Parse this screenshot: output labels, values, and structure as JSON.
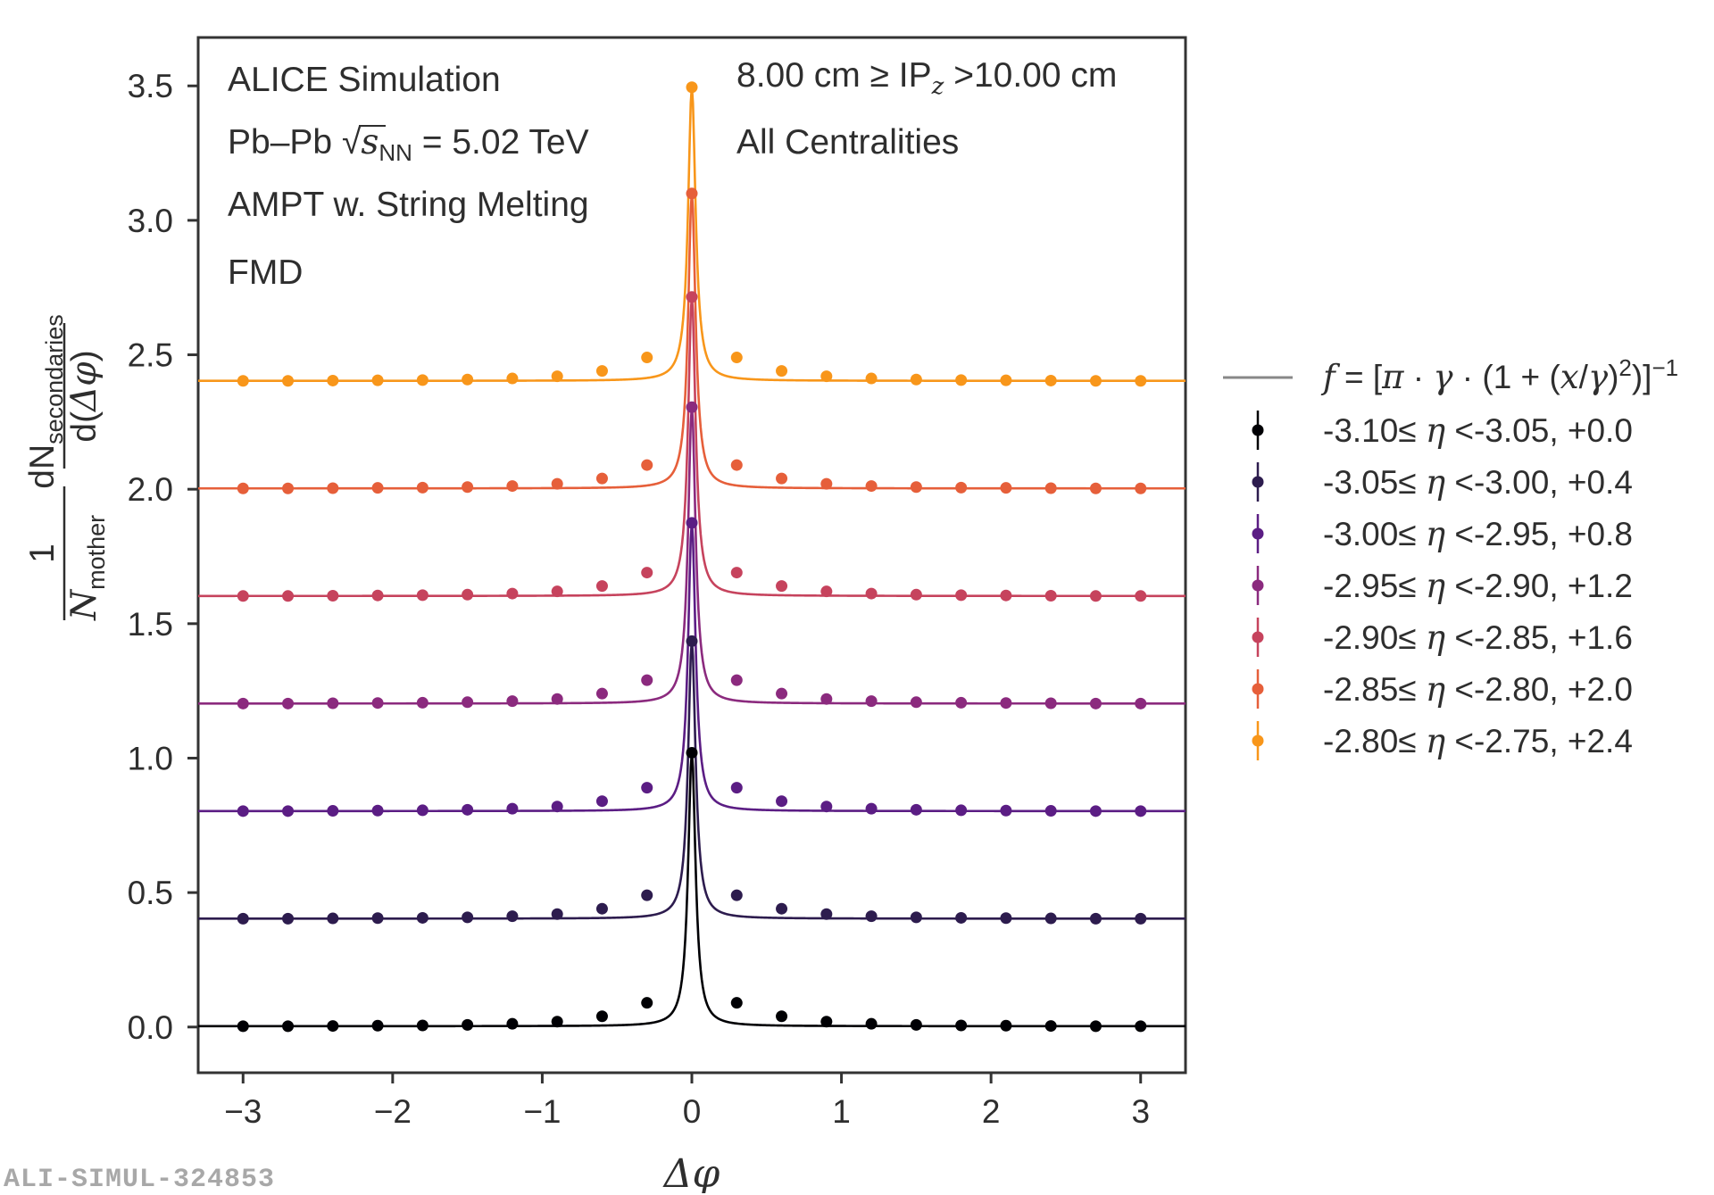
{
  "chart_data": {
    "type": "line",
    "title": "",
    "xlabel": "Δφ",
    "ylabel": "1/N_mother dN_secondaries/d(Δφ)",
    "ylabel_parts": {
      "one": "1",
      "N": "N",
      "mother": "mother",
      "dN": "dN",
      "secondaries": "secondaries",
      "d_open": "d(",
      "delta_phi": "Δφ",
      "d_close": ")"
    },
    "xlim": [
      -3.3,
      3.3
    ],
    "ylim": [
      -0.17,
      3.68
    ],
    "xticks": [
      -3,
      -2,
      -1,
      0,
      1,
      2,
      3
    ],
    "xtick_labels": [
      "−3",
      "−2",
      "−1",
      "0",
      "1",
      "2",
      "3"
    ],
    "yticks": [
      0.0,
      0.5,
      1.0,
      1.5,
      2.0,
      2.5,
      3.0,
      3.5
    ],
    "ytick_labels": [
      "0.0",
      "0.5",
      "1.0",
      "1.5",
      "2.0",
      "2.5",
      "3.0",
      "3.5"
    ],
    "x": [
      -3.0,
      -2.7,
      -2.4,
      -2.1,
      -1.8,
      -1.5,
      -1.2,
      -0.9,
      -0.6,
      -0.3,
      0.0,
      0.3,
      0.6,
      0.9,
      1.2,
      1.5,
      1.8,
      2.1,
      2.4,
      2.7,
      3.0
    ],
    "base_values": [
      0.003,
      0.003,
      0.004,
      0.005,
      0.006,
      0.008,
      0.012,
      0.02,
      0.04,
      0.09,
      1.02,
      0.09,
      0.04,
      0.02,
      0.012,
      0.008,
      0.006,
      0.005,
      0.004,
      0.003,
      0.003
    ],
    "peak_values": [
      1.02,
      1.035,
      1.075,
      1.105,
      1.115,
      1.1,
      1.095
    ],
    "fit": {
      "label": "f = [π · γ · (1 + (x/γ)²)]⁻¹",
      "gamma": 0.03,
      "color": "#888888"
    },
    "series": [
      {
        "name": "-3.10≤ η <-3.05, +0.0",
        "offset": 0.0,
        "color": "#000004"
      },
      {
        "name": "-3.05≤ η <-3.00, +0.4",
        "offset": 0.4,
        "color": "#2d1c4e"
      },
      {
        "name": "-3.00≤ η <-2.95, +0.8",
        "offset": 0.8,
        "color": "#5b1d84"
      },
      {
        "name": "-2.95≤ η <-2.90, +1.2",
        "offset": 1.2,
        "color": "#8b2a7e"
      },
      {
        "name": "-2.90≤ η <-2.85, +1.6",
        "offset": 1.6,
        "color": "#c6435d"
      },
      {
        "name": "-2.85≤ η <-2.80, +2.0",
        "offset": 2.0,
        "color": "#e65f3a"
      },
      {
        "name": "-2.80≤ η <-2.75, +2.4",
        "offset": 2.4,
        "color": "#f8961a"
      }
    ],
    "annotations_left": [
      "ALICE Simulation",
      "Pb–Pb √s_NN = 5.02 TeV",
      "AMPT w. String Melting",
      "FMD"
    ],
    "annotations_right": [
      "8.00 cm ≥ IP_z >10.00 cm",
      "All Centralities"
    ],
    "annotation_parts": {
      "pb_prefix": "Pb–Pb ",
      "s": "s",
      "nn": "NN",
      "energy": " = 5.02 TeV",
      "ip_prefix": "8.00 cm ≥ IP",
      "ip_sub": "z",
      "ip_suffix": " >10.00 cm"
    },
    "fit_legend_parts": {
      "f": "f",
      "eq": " = [",
      "pi": "π",
      "dot1": " · ",
      "gamma1": "γ",
      "dot2": " · (1 + (",
      "x": "x",
      "slash": "/",
      "gamma2": "γ",
      "close": ")",
      "sq": "2",
      "end": ")]",
      "exp": "−1"
    },
    "legend_placement": "right-outside"
  },
  "source_id": "ALI-SIMUL-324853"
}
